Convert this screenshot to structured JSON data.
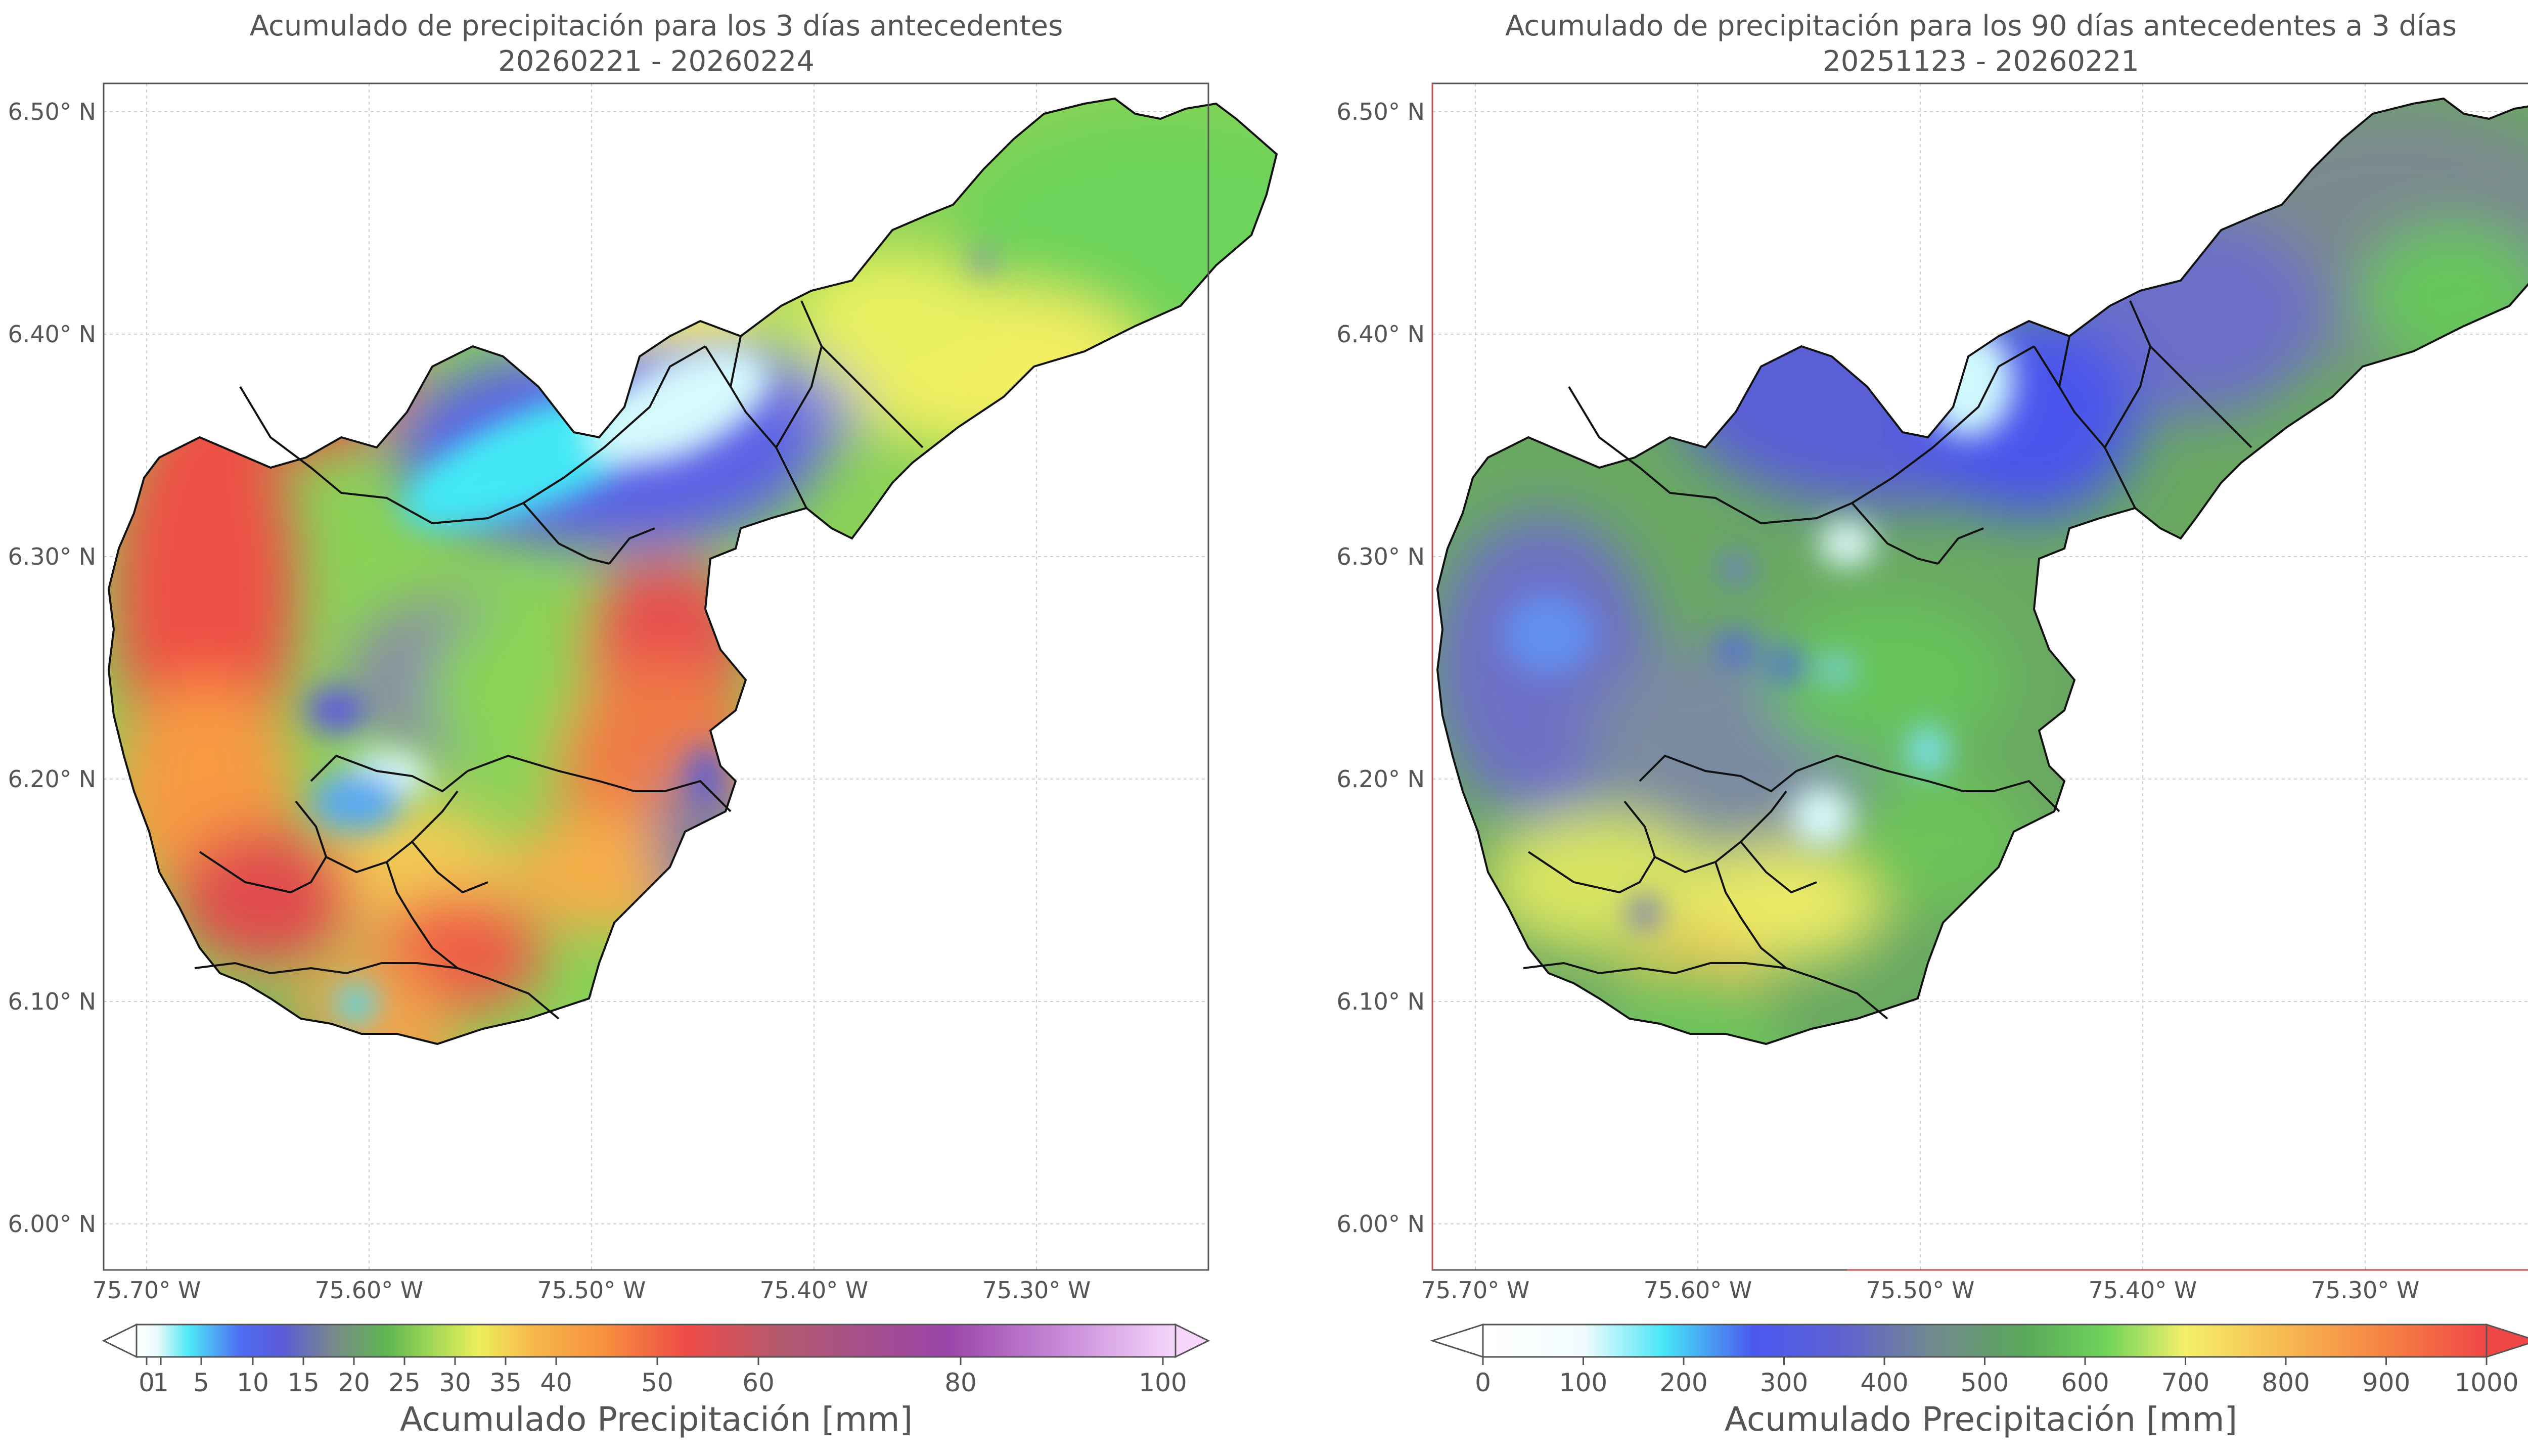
{
  "panels": [
    {
      "title_line1": "Acumulado de precipitación para los 3 días antecedentes",
      "title_line2": "20260221 - 20260224",
      "lat_ticks": [
        "6.50° N",
        "6.40° N",
        "6.30° N",
        "6.20° N",
        "6.10° N",
        "6.00° N"
      ],
      "lon_ticks": [
        "75.70° W",
        "75.60° W",
        "75.50° W",
        "75.40° W",
        "75.30° W"
      ],
      "colorbar": {
        "label": "Acumulado Precipitación [mm]",
        "ticks": [
          "0",
          "1",
          "5",
          "10",
          "15",
          "20",
          "25",
          "30",
          "35",
          "40",
          "50",
          "60",
          "80",
          "100"
        ],
        "colors": [
          "#ffffff",
          "#b5f3fb",
          "#4ce8f6",
          "#4f6cf3",
          "#4b4be8",
          "#7e7ea8",
          "#6ea36b",
          "#58c350",
          "#8bd856",
          "#ecec55",
          "#f7c24f",
          "#f8913c",
          "#ef4b48",
          "#d05a5a",
          "#9c5a8c",
          "#9a44a8",
          "#d7a0e0",
          "#f6d7fb"
        ],
        "extend_right_color": "#f6d7fb"
      }
    },
    {
      "title_line1": "Acumulado de precipitación para los 90 días antecedentes a 3 días",
      "title_line2": "20251123 - 20260221",
      "lat_ticks": [
        "6.50° N",
        "6.40° N",
        "6.30° N",
        "6.20° N",
        "6.10° N",
        "6.00° N"
      ],
      "lon_ticks": [
        "75.70° W",
        "75.60° W",
        "75.50° W",
        "75.40° W",
        "75.30° W"
      ],
      "colorbar": {
        "label": "Acumulado Precipitación [mm]",
        "ticks": [
          "0",
          "100",
          "200",
          "300",
          "400",
          "500",
          "600",
          "700",
          "800",
          "900",
          "1000"
        ],
        "colors": [
          "#ffffff",
          "#ffffff",
          "#c4f6fb",
          "#47e6f7",
          "#4a8cf0",
          "#4a4ff0",
          "#6a68c8",
          "#738a8c",
          "#5aa55a",
          "#66cc55",
          "#b8e35a",
          "#f5f06a",
          "#f7c55a",
          "#f79a45",
          "#ef4646"
        ],
        "extend_right_color": "#ef4646"
      }
    }
  ]
}
